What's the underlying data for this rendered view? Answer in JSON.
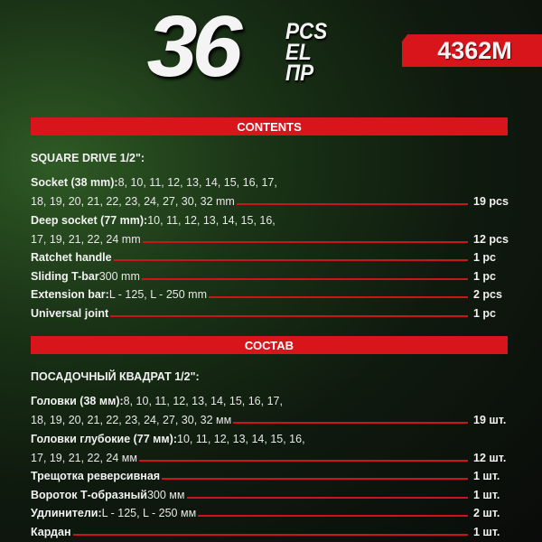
{
  "header": {
    "count": "36",
    "labels": [
      "PCS",
      "EL",
      "ПР"
    ],
    "model": "4362M"
  },
  "colors": {
    "accent": "#d9151c",
    "background": "#0f1a0e"
  },
  "sections": [
    {
      "title": "CONTENTS",
      "subtitle": "SQUARE DRIVE 1/2\":",
      "items": [
        {
          "label": "Socket (38 mm):",
          "text1": " 8, 10, 11, 12, 13, 14, 15, 16, 17,",
          "text2": "18, 19, 20, 21, 22, 23, 24, 27, 30, 32 mm",
          "qty": "19 pcs"
        },
        {
          "label": "Deep socket (77 mm):",
          "text1": " 10, 11, 12, 13, 14, 15, 16,",
          "text2": "17, 19, 21, 22, 24 mm",
          "qty": "12 pcs"
        },
        {
          "label": "Ratchet handle",
          "text": "",
          "qty": "1 pc"
        },
        {
          "label": "Sliding T-bar",
          "text": " 300 mm",
          "qty": "1 pc"
        },
        {
          "label": "Extension bar:",
          "text": " L - 125, L - 250 mm",
          "qty": "2 pcs"
        },
        {
          "label": "Universal joint",
          "text": "",
          "qty": "1 pc"
        }
      ]
    },
    {
      "title": "СОСТАВ",
      "subtitle": "ПОСАДОЧНЫЙ КВАДРАТ 1/2\":",
      "items": [
        {
          "label": "Головки (38 мм):",
          "text1": " 8, 10, 11, 12, 13, 14, 15, 16, 17,",
          "text2": "18, 19, 20, 21, 22, 23, 24, 27, 30, 32 мм",
          "qty": "19 шт."
        },
        {
          "label": "Головки глубокие (77 мм):",
          "text1": " 10, 11, 12, 13, 14, 15, 16,",
          "text2": "17, 19, 21, 22, 24 мм",
          "qty": "12 шт."
        },
        {
          "label": "Трещотка реверсивная",
          "text": "",
          "qty": "1 шт."
        },
        {
          "label": "Вороток Т-образный",
          "text": " 300 мм",
          "qty": "1 шт."
        },
        {
          "label": "Удлинители:",
          "text": " L - 125, L - 250 мм",
          "qty": "2 шт."
        },
        {
          "label": "Кардан",
          "text": "",
          "qty": "1 шт."
        }
      ]
    }
  ]
}
